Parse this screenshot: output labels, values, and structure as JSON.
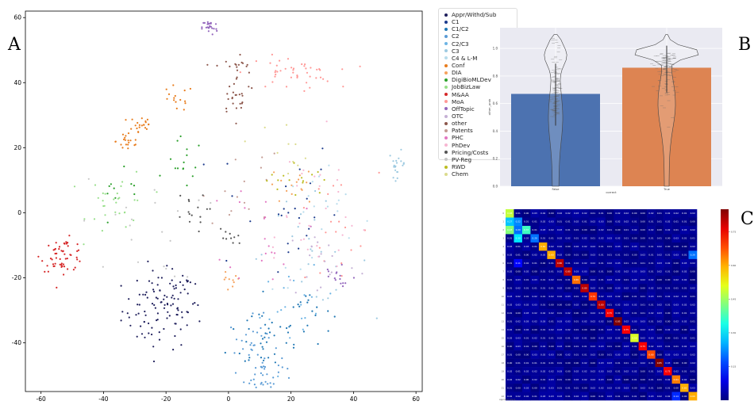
{
  "panel_labels": {
    "a": "A",
    "b": "B",
    "c": "C"
  },
  "chart_data": [
    {
      "type": "scatter",
      "xlim": [
        -65,
        62
      ],
      "ylim": [
        -55,
        62
      ],
      "xticks": [
        -60,
        -40,
        -20,
        0,
        20,
        40,
        60
      ],
      "yticks": [
        -40,
        -20,
        0,
        20,
        40,
        60
      ],
      "grid": false,
      "legend_placement": "outside-right",
      "series": [
        {
          "name": "Appr/Withd/Sub",
          "color": "#1f1f5c",
          "clusters": [
            {
              "cx": -22,
              "cy": -30,
              "sx": 6,
              "sy": 6,
              "n": 90
            },
            {
              "cx": -15,
              "cy": -25,
              "sx": 4,
              "sy": 4,
              "n": 20
            }
          ]
        },
        {
          "name": "C1",
          "color": "#1b3a8c",
          "clusters": [
            {
              "cx": 15,
              "cy": 2,
              "sx": 10,
              "sy": 12,
              "n": 25
            }
          ]
        },
        {
          "name": "C1/C2",
          "color": "#1f77b4",
          "clusters": [
            {
              "cx": 12,
              "cy": -38,
              "sx": 6,
              "sy": 6,
              "n": 35
            },
            {
              "cx": 25,
              "cy": -30,
              "sx": 4,
              "sy": 5,
              "n": 20
            }
          ]
        },
        {
          "name": "C2",
          "color": "#5a9bd5",
          "clusters": [
            {
              "cx": 8,
              "cy": -40,
              "sx": 4,
              "sy": 4,
              "n": 25
            },
            {
              "cx": 11,
              "cy": -50,
              "sx": 3,
              "sy": 3,
              "n": 35
            }
          ]
        },
        {
          "name": "C2/C3",
          "color": "#6cb4e4",
          "clusters": [
            {
              "cx": 22,
              "cy": -30,
              "sx": 6,
              "sy": 6,
              "n": 20
            }
          ]
        },
        {
          "name": "C3",
          "color": "#9ecae1",
          "clusters": [
            {
              "cx": 54,
              "cy": 15,
              "sx": 1.3,
              "sy": 2,
              "n": 20
            },
            {
              "cx": 25,
              "cy": -12,
              "sx": 10,
              "sy": 8,
              "n": 25
            }
          ]
        },
        {
          "name": "C4 & L-M",
          "color": "#b7dcec",
          "clusters": [
            {
              "cx": 30,
              "cy": -5,
              "sx": 8,
              "sy": 10,
              "n": 20
            }
          ]
        },
        {
          "name": "Conf",
          "color": "#e87d1e",
          "clusters": [
            {
              "cx": -28,
              "cy": 27,
              "sx": 2,
              "sy": 2,
              "n": 20
            },
            {
              "cx": -32,
              "cy": 22,
              "sx": 2,
              "sy": 2,
              "n": 20
            },
            {
              "cx": -17,
              "cy": 35,
              "sx": 3,
              "sy": 2,
              "n": 15
            }
          ]
        },
        {
          "name": "DIA",
          "color": "#f5a25d",
          "clusters": [
            {
              "cx": 0,
              "cy": -22,
              "sx": 2,
              "sy": 2,
              "n": 10
            },
            {
              "cx": 20,
              "cy": 8,
              "sx": 4,
              "sy": 3,
              "n": 15
            }
          ]
        },
        {
          "name": "DigiBioMLDev",
          "color": "#2ca02c",
          "clusters": [
            {
              "cx": -14,
              "cy": 15,
              "sx": 3,
              "sy": 4,
              "n": 15
            },
            {
              "cx": -35,
              "cy": 2,
              "sx": 5,
              "sy": 5,
              "n": 10
            }
          ]
        },
        {
          "name": "JobBizLaw",
          "color": "#98df8a",
          "clusters": [
            {
              "cx": -35,
              "cy": 3,
              "sx": 5,
              "sy": 5,
              "n": 30
            }
          ]
        },
        {
          "name": "M&AA",
          "color": "#d62728",
          "clusters": [
            {
              "cx": -53,
              "cy": -13,
              "sx": 3.5,
              "sy": 2.5,
              "n": 55
            }
          ]
        },
        {
          "name": "MoA",
          "color": "#ff9896",
          "clusters": [
            {
              "cx": 20,
              "cy": 43,
              "sx": 7,
              "sy": 2.5,
              "n": 45
            },
            {
              "cx": 32,
              "cy": -8,
              "sx": 8,
              "sy": 10,
              "n": 20
            }
          ]
        },
        {
          "name": "OffTopic",
          "color": "#9467bd",
          "clusters": [
            {
              "cx": -6,
              "cy": 57,
              "sx": 1.2,
              "sy": 1.2,
              "n": 25
            },
            {
              "cx": 35,
              "cy": -20,
              "sx": 3,
              "sy": 3,
              "n": 15
            }
          ]
        },
        {
          "name": "OTC",
          "color": "#c5b0d5",
          "clusters": [
            {
              "cx": 30,
              "cy": -15,
              "sx": 6,
              "sy": 6,
              "n": 20
            }
          ]
        },
        {
          "name": "other",
          "color": "#8c564b",
          "clusters": [
            {
              "cx": 3,
              "cy": 36,
              "sx": 3,
              "sy": 3,
              "n": 25
            },
            {
              "cx": 2,
              "cy": 45,
              "sx": 3,
              "sy": 2,
              "n": 15
            }
          ]
        },
        {
          "name": "Patents",
          "color": "#c49c94",
          "clusters": [
            {
              "cx": 5,
              "cy": 10,
              "sx": 6,
              "sy": 8,
              "n": 15
            }
          ]
        },
        {
          "name": "PHC",
          "color": "#e377c2",
          "clusters": [
            {
              "cx": 12,
              "cy": -5,
              "sx": 6,
              "sy": 8,
              "n": 20
            }
          ]
        },
        {
          "name": "PhDev",
          "color": "#f7b6d2",
          "clusters": [
            {
              "cx": 25,
              "cy": 0,
              "sx": 10,
              "sy": 12,
              "n": 30
            }
          ]
        },
        {
          "name": "Pricing/Costs",
          "color": "#555555",
          "clusters": [
            {
              "cx": -13,
              "cy": 0,
              "sx": 3,
              "sy": 3,
              "n": 15
            },
            {
              "cx": 0,
              "cy": -8,
              "sx": 2,
              "sy": 2,
              "n": 10
            }
          ]
        },
        {
          "name": "PV-Reg",
          "color": "#c7c7c7",
          "clusters": [
            {
              "cx": -28,
              "cy": -5,
              "sx": 10,
              "sy": 8,
              "n": 20
            }
          ]
        },
        {
          "name": "RWD",
          "color": "#bcbd22",
          "clusters": [
            {
              "cx": 22,
              "cy": 10,
              "sx": 5,
              "sy": 3,
              "n": 15
            }
          ]
        },
        {
          "name": "Chem",
          "color": "#dbdb8d",
          "clusters": [
            {
              "cx": 15,
              "cy": 20,
              "sx": 5,
              "sy": 5,
              "n": 10
            }
          ]
        }
      ]
    },
    {
      "type": "bar",
      "categories": [
        "False",
        "True"
      ],
      "values": [
        0.67,
        0.86
      ],
      "colors": [
        "#4c72b0",
        "#dd8452"
      ],
      "xlabel": "correct",
      "ylabel": "other_prob",
      "ylim": [
        0,
        1.15
      ],
      "yticks": [
        0.0,
        0.2,
        0.4,
        0.6,
        0.8,
        1.0
      ],
      "error_bars": [
        [
          0.44,
          0.89
        ],
        [
          0.68,
          1.02
        ]
      ],
      "overlay": "violin",
      "grid": true
    },
    {
      "type": "heatmap",
      "size": 23,
      "colorbar_ticks": [
        0.15,
        0.3,
        0.45,
        0.6,
        0.75
      ],
      "row_label_first": "Appr/Withd/Sub",
      "diagonal": [
        0.48,
        0.22,
        0.37,
        0.2,
        0.6,
        0.6,
        0.8,
        0.8,
        0.65,
        0.8,
        0.7,
        0.8,
        0.75,
        0.85,
        0.75,
        0.5,
        0.75,
        0.68,
        0.85,
        0.75,
        0.64,
        0.6,
        0.6
      ],
      "off_diagonal": [
        {
          "row": 1,
          "col": 0,
          "value": 0.27
        },
        {
          "row": 2,
          "col": 0,
          "value": 0.43
        },
        {
          "row": 2,
          "col": 1,
          "value": 0.2
        },
        {
          "row": 3,
          "col": 1,
          "value": 0.3
        },
        {
          "row": 6,
          "col": 1,
          "value": 0.11
        },
        {
          "row": 5,
          "col": 22,
          "value": 0.2
        },
        {
          "row": 22,
          "col": 20,
          "value": 0.14
        }
      ]
    }
  ]
}
